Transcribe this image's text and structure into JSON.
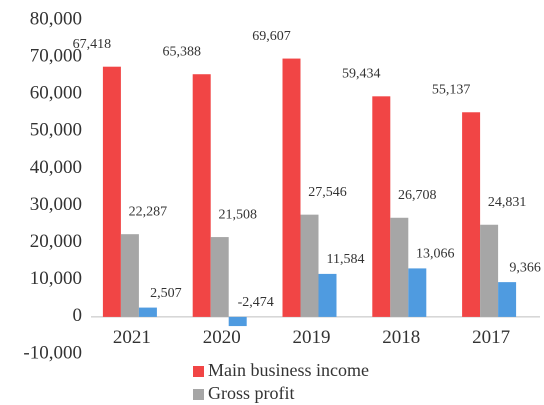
{
  "chart_data": {
    "type": "bar",
    "categories": [
      "2021",
      "2020",
      "2019",
      "2018",
      "2017"
    ],
    "series": [
      {
        "name": "Main business income",
        "color": "#f14545",
        "values": [
          67418,
          65388,
          69607,
          59434,
          55137
        ],
        "value_labels": [
          "67,418",
          "65,388",
          "69,607",
          "59,434",
          "55,137"
        ]
      },
      {
        "name": "Gross profit",
        "color": "#a6a6a6",
        "values": [
          22287,
          21508,
          27546,
          26708,
          24831
        ],
        "value_labels": [
          "22,287",
          "21,508",
          "27,546",
          "26,708",
          "24,831"
        ]
      },
      {
        "color": "#4f9be0",
        "values": [
          2507,
          -2474,
          11584,
          13066,
          9366
        ],
        "value_labels": [
          "2,507",
          "-2,474",
          "11,584",
          "13,066",
          "9,366"
        ]
      }
    ],
    "ylim": [
      -10000,
      80000
    ],
    "yticks": [
      {
        "value": -10000,
        "label": "-10,000"
      },
      0,
      {
        "value": 10000,
        "label": "10,000"
      },
      {
        "value": 20000,
        "label": "20,000"
      },
      {
        "value": 30000,
        "label": "30,000"
      },
      {
        "value": 40000,
        "label": "40,000"
      },
      {
        "value": 50000,
        "label": "50,000"
      },
      {
        "value": 60000,
        "label": "60,000"
      },
      {
        "value": 70000,
        "label": "70,000"
      },
      {
        "value": 80000,
        "label": "80,000"
      }
    ],
    "grid": false
  }
}
